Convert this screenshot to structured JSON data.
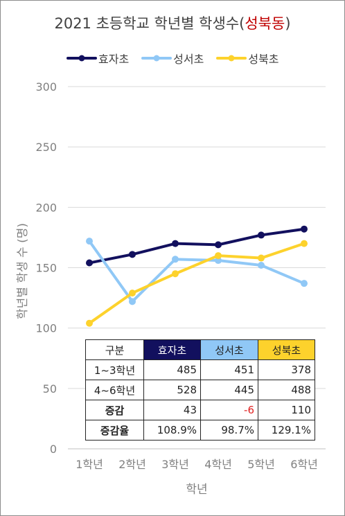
{
  "title": {
    "prefix": "2021 초등학교 학년별 학생수",
    "paren_open": "(",
    "highlight": "성북동",
    "paren_close": ")"
  },
  "colors": {
    "hyoja": "#12105e",
    "seongseo": "#90c8f6",
    "seongbuk": "#fdd22c",
    "title_highlight": "#c00000"
  },
  "chart_data": {
    "type": "line",
    "title": "2021 초등학교 학년별 학생수(성북동)",
    "xlabel": "학년",
    "ylabel": "학년별 학생 수 (명)",
    "ylim": [
      0,
      300
    ],
    "yticks": [
      "0",
      "50",
      "100",
      "150",
      "200",
      "250",
      "300"
    ],
    "categories": [
      "1학년",
      "2학년",
      "3학년",
      "4학년",
      "5학년",
      "6학년"
    ],
    "grid": true,
    "legend_position": "top",
    "series": [
      {
        "name": "효자초",
        "color": "#12105e",
        "values": [
          154,
          161,
          170,
          169,
          177,
          182
        ]
      },
      {
        "name": "성서초",
        "color": "#90c8f6",
        "values": [
          172,
          122,
          157,
          156,
          152,
          137
        ]
      },
      {
        "name": "성북초",
        "color": "#fdd22c",
        "values": [
          104,
          129,
          145,
          160,
          158,
          170
        ]
      }
    ]
  },
  "table": {
    "header": [
      "구분",
      "효자초",
      "성서초",
      "성북초"
    ],
    "header_colors": [
      "#ffffff",
      "#12105e",
      "#90c8f6",
      "#fdd22c"
    ],
    "rows": [
      {
        "label": "1~3학년",
        "values": [
          "485",
          "451",
          "378"
        ]
      },
      {
        "label": "4~6학년",
        "values": [
          "528",
          "445",
          "488"
        ]
      },
      {
        "label": "증감",
        "values": [
          "43",
          "-6",
          "110"
        ]
      },
      {
        "label": "증감율",
        "values": [
          "108.9%",
          "98.7%",
          "129.1%"
        ]
      }
    ]
  }
}
